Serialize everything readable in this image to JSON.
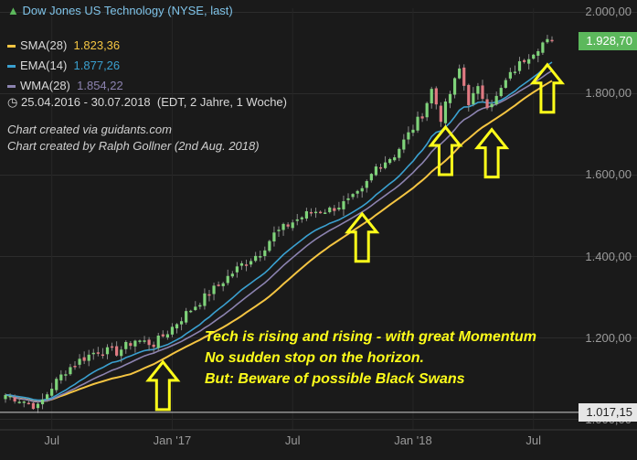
{
  "header": {
    "title": "Dow Jones US Technology (NYSE, last)",
    "legend": [
      {
        "label": "SMA(28)",
        "value": "1.823,36",
        "color": "#f5c542"
      },
      {
        "label": "EMA(14)",
        "value": "1.877,26",
        "color": "#3aa0d0"
      },
      {
        "label": "WMA(28)",
        "value": "1.854,22",
        "color": "#8c83b0"
      }
    ],
    "range": "25.04.2016 - 30.07.2018",
    "range_note": "(EDT, 2 Jahre, 1 Woche)"
  },
  "credits": [
    "Chart created via guidants.com",
    "Chart created by Ralph Gollner (2nd Aug. 2018)"
  ],
  "annotation_lines": [
    "Tech is rising and rising - with great Momentum",
    "No sudden stop on the horizon.",
    "But: Beware of possible Black Swans"
  ],
  "tags": {
    "last": {
      "text": "1.928,70",
      "value": 1928.7,
      "color": "#5cb85c"
    },
    "low": {
      "text": "1.017,15",
      "value": 1017.15,
      "color": "#e6e6e6"
    }
  },
  "colors": {
    "background": "#1a1a1a",
    "up": "#7fd37a",
    "down": "#e07a82",
    "arrow": "#ffff1a"
  },
  "chart_data": {
    "type": "candlestick",
    "period": "weekly",
    "y_ticks": [
      1000,
      1200,
      1400,
      1600,
      1800,
      2000
    ],
    "y_tick_labels": [
      "1.000,00",
      "1.200,00",
      "1.400,00",
      "1.600,00",
      "1.800,00",
      "2.000,00"
    ],
    "ylim": [
      990,
      2010
    ],
    "x_ticks": [
      "Jul",
      "Jan '17",
      "Jul",
      "Jan '18",
      "Jul"
    ],
    "x_tick_weeks": [
      10,
      36,
      62,
      88,
      114
    ],
    "close_path": [
      [
        0,
        1060
      ],
      [
        4,
        1045
      ],
      [
        7,
        1030
      ],
      [
        10,
        1080
      ],
      [
        13,
        1120
      ],
      [
        16,
        1145
      ],
      [
        20,
        1170
      ],
      [
        24,
        1165
      ],
      [
        28,
        1195
      ],
      [
        32,
        1185
      ],
      [
        35,
        1215
      ],
      [
        39,
        1260
      ],
      [
        43,
        1300
      ],
      [
        47,
        1340
      ],
      [
        51,
        1380
      ],
      [
        55,
        1410
      ],
      [
        58,
        1455
      ],
      [
        62,
        1485
      ],
      [
        66,
        1510
      ],
      [
        70,
        1515
      ],
      [
        74,
        1535
      ],
      [
        77,
        1560
      ],
      [
        80,
        1620
      ],
      [
        84,
        1650
      ],
      [
        87,
        1700
      ],
      [
        90,
        1750
      ],
      [
        92,
        1810
      ],
      [
        94,
        1740
      ],
      [
        96,
        1800
      ],
      [
        98,
        1860
      ],
      [
        100,
        1780
      ],
      [
        102,
        1810
      ],
      [
        104,
        1775
      ],
      [
        106,
        1790
      ],
      [
        108,
        1830
      ],
      [
        110,
        1860
      ],
      [
        112,
        1885
      ],
      [
        114,
        1905
      ],
      [
        116,
        1925
      ],
      [
        118,
        1928.7
      ]
    ],
    "weeks": 119,
    "arrow_weeks": [
      34,
      77,
      95,
      105,
      117
    ]
  }
}
